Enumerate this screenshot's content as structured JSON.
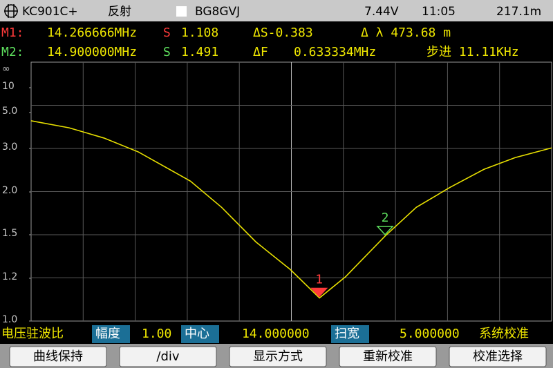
{
  "header": {
    "logo_text": "KC901C+",
    "mode": "反射",
    "callsign": "BG8GVJ",
    "voltage": "7.44V",
    "time": "11:05",
    "extra": "217.1m"
  },
  "markers": [
    {
      "label": "M1:",
      "freq": "14.266666MHz",
      "s_label": "S",
      "s_value": "1.108",
      "delta1": "ΔS-0.383",
      "delta2": "Δ λ 473.68 m"
    },
    {
      "label": "M2:",
      "freq": "14.900000MHz",
      "s_label": "S",
      "s_value": "1.491",
      "delta1": "ΔF",
      "delta1_value": "0.633334MHz",
      "delta2": "步进 11.11KHz"
    }
  ],
  "chart_data": {
    "type": "line",
    "x": [
      11.5,
      11.865,
      12.2,
      12.53,
      13.03,
      13.33,
      13.66,
      13.99,
      14.27,
      14.52,
      14.9,
      15.2,
      15.52,
      15.85,
      16.15,
      16.5
    ],
    "series": [
      {
        "color": "#e8e000",
        "values": [
          4.54,
          4.15,
          3.58,
          2.92,
          2.25,
          1.82,
          1.45,
          1.26,
          1.108,
          1.21,
          1.491,
          1.82,
          2.1,
          2.52,
          2.79,
          3.03
        ]
      }
    ],
    "xlim": [
      11.5,
      16.5
    ],
    "yticks": [
      {
        "value": 1,
        "label": "1.0"
      },
      1.2,
      1.5,
      {
        "value": 2,
        "label": "2.0"
      },
      {
        "value": 3,
        "label": "3.0"
      },
      {
        "value": 5,
        "label": "5.0"
      },
      10
    ],
    "y_top_label": "∞",
    "grid": true,
    "markers": [
      {
        "label": "1",
        "x": 14.266666,
        "value": 1.108,
        "color": "#ff3a3a"
      },
      {
        "label": "2",
        "x": 14.9,
        "value": 1.491,
        "color": "#5ee05e"
      }
    ]
  },
  "status_bar": {
    "title": "电压驻波比",
    "scale_label": "幅度",
    "scale_value": "1.00",
    "center_label": "中心",
    "center_value": "14.000000",
    "span_label": "扫宽",
    "span_value": "5.000000",
    "calib": "系统校准"
  },
  "buttons": [
    "曲线保持",
    "/div",
    "显示方式",
    "重新校准",
    "校准选择"
  ]
}
